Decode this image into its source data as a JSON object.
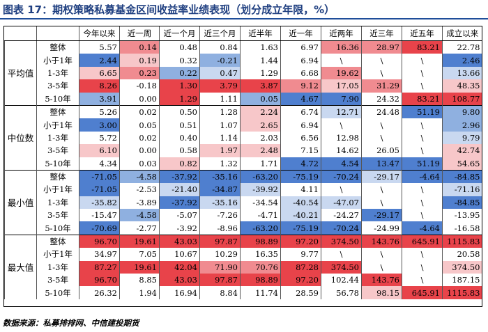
{
  "title": "图表 17：期权策略私募基金区间收益率业绩表现（划分成立年限，%）",
  "source": "数据来源：私募排排网、中信建投期货",
  "colors": {
    "blue_strong": "#4f7fcf",
    "blue_mid": "#8fb0e0",
    "blue_light": "#c9d8f0",
    "red_strong": "#e8434a",
    "red_mid": "#f08b90",
    "red_light": "#f7c7c9",
    "white": "#ffffff"
  },
  "columns": [
    "今年以来",
    "近一周",
    "近一个月",
    "近三个月",
    "近半年",
    "近一年",
    "近两年",
    "近三年",
    "近五年",
    "成立以来"
  ],
  "groups": [
    {
      "name": "平均值",
      "rows": [
        {
          "label": "整体",
          "values": [
            "5.57",
            "0.14",
            "0.48",
            "0.84",
            "1.63",
            "6.97",
            "16.36",
            "28.97",
            "83.21",
            "22.78"
          ],
          "tones": [
            "w",
            "r2",
            "w",
            "w",
            "w",
            "w",
            "r2",
            "r2",
            "r3",
            "w"
          ]
        },
        {
          "label": "小于1年",
          "values": [
            "2.44",
            "0.19",
            "0.32",
            "-0.21",
            "1.44",
            "6.94",
            "\\",
            "\\",
            "\\",
            "2.46"
          ],
          "tones": [
            "b3",
            "r1",
            "w",
            "b2",
            "w",
            "w",
            "w",
            "w",
            "w",
            "b3"
          ]
        },
        {
          "label": "1-3年",
          "values": [
            "6.65",
            "0.23",
            "0.22",
            "0.47",
            "1.29",
            "6.68",
            "19.62",
            "\\",
            "\\",
            "13.66"
          ],
          "tones": [
            "r1",
            "r2",
            "b2",
            "b1",
            "w",
            "w",
            "r2",
            "w",
            "w",
            "b1"
          ]
        },
        {
          "label": "3-5年",
          "values": [
            "8.26",
            "-0.18",
            "1.30",
            "3.79",
            "3.87",
            "9.12",
            "17.05",
            "31.29",
            "\\",
            "48.35"
          ],
          "tones": [
            "r3",
            "w",
            "r3",
            "r3",
            "r3",
            "r2",
            "r1",
            "r2",
            "w",
            "r1"
          ]
        },
        {
          "label": "5-10年",
          "values": [
            "3.91",
            "0.00",
            "1.29",
            "1.11",
            "0.05",
            "4.67",
            "7.90",
            "24.32",
            "83.21",
            "108.77"
          ],
          "tones": [
            "b2",
            "w",
            "r3",
            "w",
            "b2",
            "b3",
            "b3",
            "w",
            "r3",
            "r3"
          ]
        }
      ]
    },
    {
      "name": "中位数",
      "rows": [
        {
          "label": "整体",
          "values": [
            "5.26",
            "0.02",
            "0.50",
            "1.28",
            "2.24",
            "6.74",
            "12.71",
            "24.48",
            "51.19",
            "9.80"
          ],
          "tones": [
            "w",
            "w",
            "w",
            "w",
            "r1",
            "w",
            "b1",
            "w",
            "b3",
            "b2"
          ]
        },
        {
          "label": "小于1年",
          "values": [
            "3.00",
            "0.05",
            "0.51",
            "1.07",
            "2.65",
            "6.94",
            "\\",
            "\\",
            "\\",
            "2.96"
          ],
          "tones": [
            "b3",
            "w",
            "w",
            "w",
            "r1",
            "w",
            "w",
            "w",
            "w",
            "b2"
          ]
        },
        {
          "label": "1-3年",
          "values": [
            "5.72",
            "0.02",
            "0.40",
            "1.14",
            "2.03",
            "6.56",
            "12.98",
            "\\",
            "\\",
            "9.79"
          ],
          "tones": [
            "w",
            "w",
            "w",
            "w",
            "w",
            "w",
            "w",
            "w",
            "w",
            "b1"
          ]
        },
        {
          "label": "3-5年",
          "values": [
            "6.10",
            "0.00",
            "0.58",
            "1.97",
            "2.48",
            "7.15",
            "14.62",
            "26.05",
            "\\",
            "42.74"
          ],
          "tones": [
            "r1",
            "w",
            "w",
            "r1",
            "r1",
            "w",
            "w",
            "w",
            "w",
            "r1"
          ]
        },
        {
          "label": "5-10年",
          "values": [
            "4.34",
            "0.03",
            "0.82",
            "1.32",
            "1.71",
            "4.72",
            "4.54",
            "13.47",
            "51.19",
            "54.65"
          ],
          "tones": [
            "w",
            "w",
            "r1",
            "w",
            "w",
            "b3",
            "b3",
            "b3",
            "b3",
            "r1"
          ]
        }
      ]
    },
    {
      "name": "最小值",
      "rows": [
        {
          "label": "整体",
          "values": [
            "-71.05",
            "-4.58",
            "-37.92",
            "-35.16",
            "-63.20",
            "-75.19",
            "-70.24",
            "-29.17",
            "-4.64",
            "-84.85"
          ],
          "tones": [
            "b3",
            "b2",
            "b3",
            "b3",
            "b3",
            "b3",
            "b3",
            "b1",
            "b3",
            "b3"
          ]
        },
        {
          "label": "小于1年",
          "values": [
            "-71.05",
            "-2.53",
            "-21.40",
            "-34.87",
            "-39.92",
            "4.11",
            "\\",
            "\\",
            "\\",
            "-71.16"
          ],
          "tones": [
            "b3",
            "w",
            "b1",
            "b3",
            "b1",
            "w",
            "w",
            "w",
            "w",
            "b1"
          ]
        },
        {
          "label": "1-3年",
          "values": [
            "-35.82",
            "-3.89",
            "-37.92",
            "-35.16",
            "-34.54",
            "-40.54",
            "-47.07",
            "\\",
            "\\",
            "-84.85"
          ],
          "tones": [
            "b1",
            "w",
            "b3",
            "b1",
            "w",
            "b1",
            "b1",
            "w",
            "w",
            "b3"
          ]
        },
        {
          "label": "3-5年",
          "values": [
            "-15.47",
            "-4.58",
            "-5.07",
            "-7.26",
            "-4.71",
            "-40.21",
            "-24.27",
            "-29.17",
            "\\",
            "-13.95"
          ],
          "tones": [
            "w",
            "b2",
            "w",
            "w",
            "w",
            "b1",
            "w",
            "b3",
            "w",
            "w"
          ]
        },
        {
          "label": "5-10年",
          "values": [
            "-70.69",
            "-2.77",
            "-3.92",
            "-8.96",
            "-63.20",
            "-75.19",
            "-70.24",
            "-24.99",
            "-4.64",
            "-16.58"
          ],
          "tones": [
            "b3",
            "w",
            "w",
            "w",
            "b3",
            "b3",
            "b3",
            "w",
            "b3",
            "w"
          ]
        }
      ]
    },
    {
      "name": "最大值",
      "rows": [
        {
          "label": "整体",
          "values": [
            "96.70",
            "19.61",
            "43.03",
            "97.87",
            "98.89",
            "97.20",
            "374.50",
            "143.76",
            "645.91",
            "1115.83"
          ],
          "tones": [
            "r3",
            "r3",
            "r3",
            "r3",
            "r3",
            "r3",
            "r3",
            "r3",
            "r3",
            "r3"
          ]
        },
        {
          "label": "小于1年",
          "values": [
            "34.97",
            "7.05",
            "10.67",
            "10.29",
            "16.35",
            "9.77",
            "\\",
            "\\",
            "\\",
            "20.58"
          ],
          "tones": [
            "w",
            "w",
            "w",
            "w",
            "w",
            "w",
            "w",
            "w",
            "w",
            "w"
          ]
        },
        {
          "label": "1-3年",
          "values": [
            "87.27",
            "19.61",
            "42.04",
            "71.90",
            "70.76",
            "87.28",
            "374.50",
            "\\",
            "\\",
            "374.50"
          ],
          "tones": [
            "r3",
            "r3",
            "r3",
            "r2",
            "r2",
            "r3",
            "r3",
            "w",
            "w",
            "r1"
          ]
        },
        {
          "label": "3-5年",
          "values": [
            "96.70",
            "8.85",
            "43.03",
            "97.87",
            "98.89",
            "97.20",
            "102.44",
            "143.76",
            "\\",
            "187.15"
          ],
          "tones": [
            "r3",
            "w",
            "r3",
            "r3",
            "r3",
            "r3",
            "w",
            "r3",
            "w",
            "w"
          ]
        },
        {
          "label": "5-10年",
          "values": [
            "26.32",
            "1.94",
            "16.94",
            "8.84",
            "11.74",
            "28.59",
            "56.78",
            "98.15",
            "645.91",
            "1115.83"
          ],
          "tones": [
            "w",
            "w",
            "w",
            "w",
            "w",
            "w",
            "w",
            "r1",
            "r3",
            "r3"
          ]
        }
      ]
    }
  ]
}
